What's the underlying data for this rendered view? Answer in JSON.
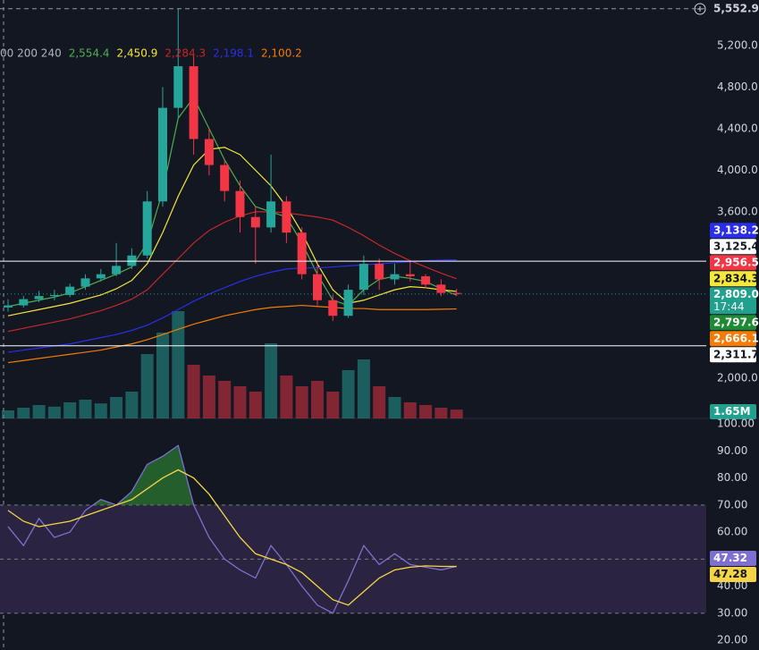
{
  "chart_data": [
    {
      "type": "candlestick",
      "legend_prefix": "00 200 240",
      "open": [
        2680,
        2700,
        2760,
        2790,
        2800,
        2880,
        2960,
        3000,
        3080,
        3180,
        3700,
        4600,
        5000,
        4300,
        4050,
        3800,
        3550,
        3450,
        3700,
        3400,
        3000,
        2750,
        2600,
        2850,
        3100,
        2950,
        3000,
        2980,
        2900,
        2820
      ],
      "high": [
        2760,
        2790,
        2840,
        2850,
        2910,
        3000,
        3050,
        3300,
        3250,
        3800,
        4800,
        5552.9,
        5100,
        4400,
        4100,
        3900,
        3650,
        4150,
        3750,
        3450,
        3100,
        2800,
        2900,
        3180,
        3150,
        3100,
        3120,
        3000,
        2950,
        2860
      ],
      "low": [
        2640,
        2680,
        2730,
        2750,
        2780,
        2850,
        2930,
        2980,
        3050,
        3150,
        3650,
        4500,
        4150,
        3950,
        3700,
        3400,
        3100,
        3400,
        3300,
        2950,
        2700,
        2550,
        2580,
        2800,
        2850,
        2900,
        2930,
        2860,
        2790,
        2790
      ],
      "close": [
        2700,
        2760,
        2790,
        2800,
        2880,
        2960,
        3000,
        3080,
        3180,
        3700,
        4600,
        5000,
        4300,
        4050,
        3800,
        3550,
        3450,
        3700,
        3400,
        3000,
        2750,
        2600,
        2850,
        3100,
        2950,
        3000,
        2980,
        2900,
        2820,
        2809
      ],
      "up_color": "#26a69a",
      "down_color": "#f23645",
      "series": [
        {
          "color": "#4caf50",
          "legend": {
            "value": 2554.4,
            "label": "2,554.4"
          },
          "values": [
            2690,
            2720,
            2750,
            2780,
            2820,
            2880,
            2940,
            3000,
            3070,
            3300,
            3800,
            4500,
            4700,
            4400,
            4100,
            3850,
            3650,
            3600,
            3550,
            3300,
            3000,
            2750,
            2700,
            2850,
            2950,
            2980,
            2960,
            2930,
            2860,
            2797.6
          ]
        },
        {
          "color": "#f5e73b",
          "legend": {
            "value": 2450.9,
            "label": "2,450.9"
          },
          "values": [
            2600,
            2630,
            2660,
            2690,
            2720,
            2760,
            2800,
            2860,
            2940,
            3100,
            3400,
            3750,
            4050,
            4200,
            4220,
            4150,
            4000,
            3850,
            3650,
            3400,
            3100,
            2850,
            2720,
            2750,
            2800,
            2850,
            2880,
            2870,
            2850,
            2834.3
          ]
        },
        {
          "color": "#c62828",
          "legend": {
            "value": 2284.3,
            "label": "2,284.3"
          },
          "values": [
            2450,
            2480,
            2510,
            2540,
            2570,
            2610,
            2650,
            2700,
            2760,
            2850,
            3000,
            3150,
            3300,
            3420,
            3500,
            3560,
            3600,
            3600,
            3590,
            3570,
            3550,
            3520,
            3450,
            3370,
            3280,
            3200,
            3130,
            3070,
            3010,
            2956.5
          ]
        },
        {
          "color": "#2a2ee8",
          "legend": {
            "value": 2198.1,
            "label": "2,198.1"
          },
          "values": [
            2250,
            2270,
            2290,
            2310,
            2330,
            2360,
            2390,
            2420,
            2460,
            2510,
            2580,
            2660,
            2740,
            2810,
            2870,
            2930,
            2980,
            3020,
            3050,
            3060,
            3060,
            3070,
            3080,
            3090,
            3100,
            3110,
            3120,
            3130,
            3135,
            3138.2
          ]
        },
        {
          "color": "#f57c00",
          "legend": {
            "value": 2100.2,
            "label": "2,100.2"
          },
          "values": [
            2150,
            2170,
            2190,
            2210,
            2230,
            2250,
            2270,
            2300,
            2330,
            2370,
            2420,
            2470,
            2520,
            2560,
            2600,
            2630,
            2660,
            2680,
            2690,
            2700,
            2690,
            2680,
            2670,
            2670,
            2660,
            2660,
            2660,
            2660,
            2663,
            2666.1
          ]
        }
      ],
      "volume": {
        "values": [
          1.5,
          2.0,
          2.5,
          2.2,
          3.0,
          3.5,
          2.8,
          4.0,
          5.0,
          12,
          16,
          20,
          10,
          8,
          7,
          6,
          5,
          14,
          8,
          6,
          7,
          5,
          9,
          11,
          6,
          4,
          3,
          2.5,
          2,
          1.65
        ],
        "last": {
          "value": 1.65,
          "label": "1.65M",
          "color": "#22a08e"
        }
      },
      "ylim": [
        1613,
        5637
      ],
      "yticks": [
        {
          "value": 2000,
          "label": "2,000.0"
        },
        {
          "value": 3600,
          "label": "3,600.0"
        },
        {
          "value": 4000,
          "label": "4,000.0"
        },
        {
          "value": 4400,
          "label": "4,400.0"
        },
        {
          "value": 4800,
          "label": "4,800.0"
        },
        {
          "value": 5200,
          "label": "5,200.0"
        }
      ],
      "badges": [
        {
          "value": 5552.9,
          "label": "5,552.9",
          "color": "#131722",
          "text_color": "#d1d4dc",
          "line": "dashed"
        },
        {
          "value": 3138.2,
          "label": "3,138.2",
          "color": "#2a2ee8",
          "text_color": "#ffffff"
        },
        {
          "value": 3125.4,
          "label": "3,125.4",
          "color": "#ffffff",
          "text_color": "#131722",
          "line": "solid"
        },
        {
          "value": 2956.5,
          "label": "2,956.5",
          "color": "#f23645",
          "text_color": "#ffffff"
        },
        {
          "value": 2834.3,
          "label": "2,834.3",
          "color": "#f5e73b",
          "text_color": "#131722"
        },
        {
          "value": 2809.0,
          "label": "2,809.0",
          "sub": "17:44",
          "color": "#22a08e",
          "text_color": "#ffffff",
          "line": "dotted"
        },
        {
          "value": 2797.6,
          "label": "2,797.6",
          "color": "#1f8a34",
          "text_color": "#ffffff"
        },
        {
          "value": 2666.1,
          "label": "2,666.1",
          "color": "#f57c00",
          "text_color": "#ffffff"
        },
        {
          "value": 2311.7,
          "label": "2,311.7",
          "color": "#ffffff",
          "text_color": "#131722",
          "line": "solid"
        }
      ]
    },
    {
      "type": "line",
      "series": [
        {
          "color": "#7e6fd0",
          "values": [
            62,
            55,
            65,
            58,
            60,
            68,
            72,
            70,
            75,
            85,
            88,
            92,
            70,
            58,
            50,
            46,
            43,
            55,
            48,
            40,
            33,
            30,
            42,
            55,
            48,
            52,
            48,
            47,
            46,
            47.32
          ]
        },
        {
          "color": "#f5d547",
          "values": [
            68,
            64,
            62,
            63,
            64,
            66,
            68,
            70,
            72,
            76,
            80,
            83,
            80,
            74,
            66,
            58,
            52,
            50,
            48,
            45,
            40,
            35,
            33,
            38,
            43,
            46,
            47,
            47.5,
            47.3,
            47.28
          ]
        }
      ],
      "fill_above_color": "#2e7d32",
      "band": [
        30,
        70
      ],
      "band_color": "#2a2440",
      "ylim": [
        16.4,
        102
      ],
      "yticks": [
        {
          "value": 20,
          "label": "20.00"
        },
        {
          "value": 30,
          "label": "30.00"
        },
        {
          "value": 40,
          "label": "40.00"
        },
        {
          "value": 50,
          "label": "50.00"
        },
        {
          "value": 60,
          "label": "60.00"
        },
        {
          "value": 70,
          "label": "70.00"
        },
        {
          "value": 80,
          "label": "80.00"
        },
        {
          "value": 90,
          "label": "90.00"
        },
        {
          "value": 100,
          "label": "100.00"
        }
      ],
      "badges": [
        {
          "value": 47.32,
          "label": "47.32",
          "color": "#7e6fd0",
          "text_color": "#ffffff"
        },
        {
          "value": 47.28,
          "label": "47.28",
          "color": "#f5d547",
          "text_color": "#131722"
        }
      ]
    }
  ]
}
